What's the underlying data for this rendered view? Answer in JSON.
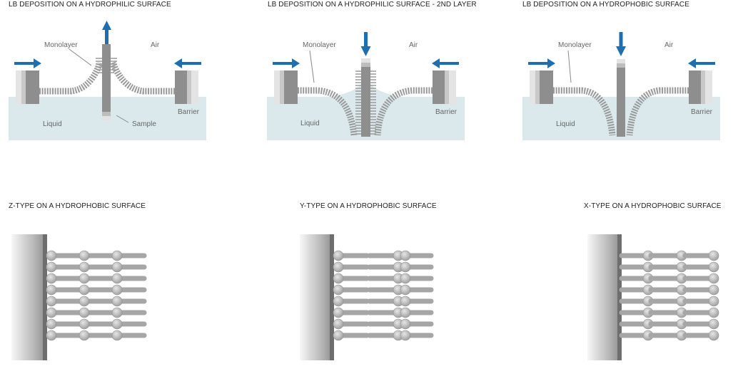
{
  "panels": {
    "top": [
      {
        "title": "LB DEPOSITION ON A HYDROPHILIC SURFACE",
        "labels": {
          "monolayer": "Monolayer",
          "air": "Air",
          "liquid": "Liquid",
          "barrier": "",
          "sample": "Sample"
        },
        "direction": "up"
      },
      {
        "title": "LB DEPOSITION ON A HYDROPHILIC SURFACE - 2ND LAYER",
        "labels": {
          "monolayer": "Monolayer",
          "air": "Air",
          "liquid": "Liquid",
          "barrier": "Barrier",
          "sample": ""
        },
        "direction": "down"
      },
      {
        "title": "LB DEPOSITION ON A HYDROPHOBIC SURFACE",
        "labels": {
          "monolayer": "Monolayer",
          "air": "Air",
          "liquid": "Liquid",
          "barrier": "Barrier",
          "sample": ""
        },
        "direction": "down"
      }
    ],
    "top_barrier_first": "Barrier",
    "bottom": [
      {
        "title": "Z-TYPE ON A HYDROPHOBIC SURFACE",
        "type": "Z"
      },
      {
        "title": "Y-TYPE ON A HYDROPHOBIC SURFACE",
        "type": "Y"
      },
      {
        "title": "X-TYPE ON A HYDROPHOBIC SURFACE",
        "type": "X"
      }
    ]
  },
  "colors": {
    "liquid": "#dbe9ed",
    "arrow": "#1f6fb0",
    "molecule": "#9a9a9a",
    "barrier_dark": "#8e8e8e",
    "substrate_dark": "#6e6e6e"
  }
}
